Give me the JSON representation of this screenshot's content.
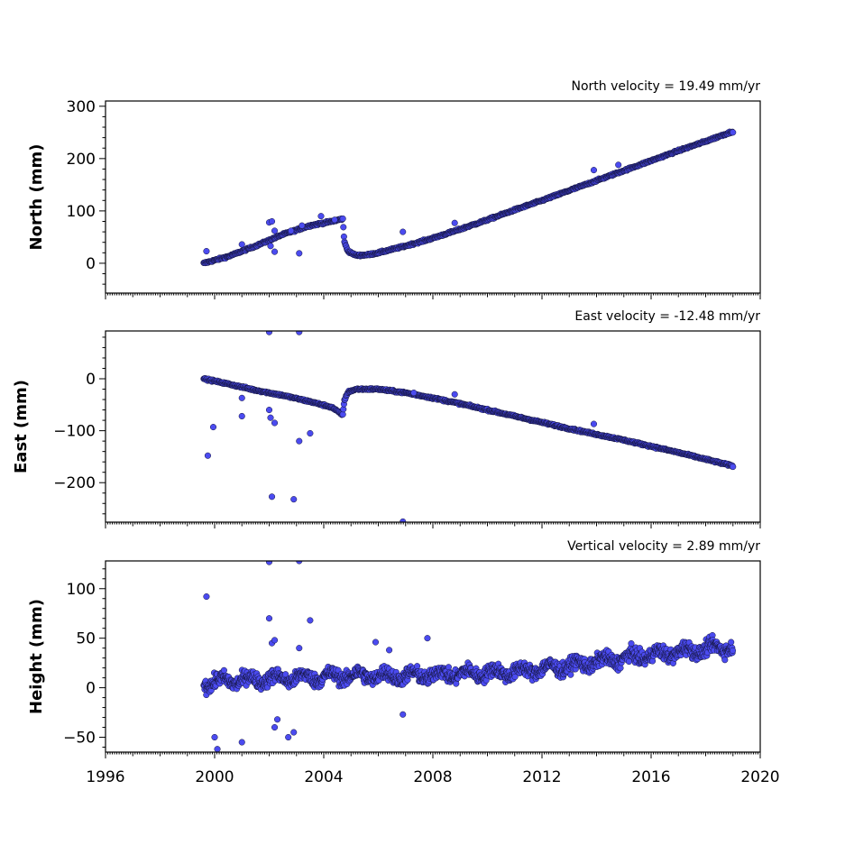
{
  "chart_data": [
    {
      "type": "scatter",
      "title": "North velocity = 19.49 mm/yr",
      "ylabel": "North (mm)",
      "xlabel": "",
      "xlim": [
        1996,
        2020
      ],
      "ylim": [
        -57,
        310
      ],
      "yticks": [
        0,
        100,
        200,
        300
      ],
      "xticks": [
        1996,
        2000,
        2004,
        2008,
        2012,
        2016,
        2020
      ],
      "show_x_tick_labels": false,
      "marker_color": "#4b4bf0",
      "series": [
        {
          "trend": [
            [
              1999.6,
              0
            ],
            [
              2000.5,
              13
            ],
            [
              2001.5,
              33
            ],
            [
              2002.5,
              55
            ],
            [
              2003.5,
              72
            ],
            [
              2004.3,
              80
            ],
            [
              2004.7,
              85
            ],
            [
              2004.75,
              42
            ],
            [
              2004.9,
              22
            ],
            [
              2005.2,
              15
            ],
            [
              2005.6,
              16
            ],
            [
              2006.0,
              20
            ],
            [
              2007.0,
              33
            ],
            [
              2008.0,
              48
            ],
            [
              2009.0,
              65
            ],
            [
              2010.0,
              83
            ],
            [
              2011.0,
              102
            ],
            [
              2012.0,
              120
            ],
            [
              2013.0,
              139
            ],
            [
              2014.0,
              158
            ],
            [
              2015.0,
              177
            ],
            [
              2016.0,
              196
            ],
            [
              2017.0,
              215
            ],
            [
              2018.0,
              233
            ],
            [
              2019.0,
              252
            ]
          ],
          "outliers": [
            [
              1999.7,
              23
            ],
            [
              2001.0,
              36
            ],
            [
              2002.0,
              78
            ],
            [
              2002.1,
              80
            ],
            [
              2002.2,
              62
            ],
            [
              2002.05,
              33
            ],
            [
              2002.2,
              22
            ],
            [
              2002.8,
              62
            ],
            [
              2003.1,
              19
            ],
            [
              2003.2,
              72
            ],
            [
              2003.9,
              90
            ],
            [
              2004.4,
              83
            ],
            [
              2006.9,
              60
            ],
            [
              2008.8,
              77
            ],
            [
              2013.9,
              178
            ],
            [
              2014.8,
              188
            ]
          ]
        }
      ]
    },
    {
      "type": "scatter",
      "title": "East velocity = -12.48 mm/yr",
      "ylabel": "East (mm)",
      "xlabel": "",
      "xlim": [
        1996,
        2020
      ],
      "ylim": [
        -276,
        92
      ],
      "yticks": [
        -200,
        -100,
        0
      ],
      "xticks": [
        1996,
        2000,
        2004,
        2008,
        2012,
        2016,
        2020
      ],
      "show_x_tick_labels": false,
      "marker_color": "#4b4bf0",
      "series": [
        {
          "trend": [
            [
              1999.6,
              0
            ],
            [
              2000.5,
              -10
            ],
            [
              2001.5,
              -22
            ],
            [
              2002.5,
              -32
            ],
            [
              2003.5,
              -44
            ],
            [
              2004.3,
              -55
            ],
            [
              2004.7,
              -70
            ],
            [
              2004.75,
              -42
            ],
            [
              2004.9,
              -25
            ],
            [
              2005.2,
              -20
            ],
            [
              2006.0,
              -20
            ],
            [
              2007.0,
              -27
            ],
            [
              2008.0,
              -37
            ],
            [
              2009.0,
              -48
            ],
            [
              2010.0,
              -60
            ],
            [
              2011.0,
              -72
            ],
            [
              2012.0,
              -84
            ],
            [
              2013.0,
              -96
            ],
            [
              2014.0,
              -107
            ],
            [
              2015.0,
              -118
            ],
            [
              2016.0,
              -130
            ],
            [
              2017.0,
              -142
            ],
            [
              2018.0,
              -155
            ],
            [
              2019.0,
              -168
            ]
          ],
          "outliers": [
            [
              1999.75,
              -148
            ],
            [
              1999.95,
              -93
            ],
            [
              2001.0,
              -72
            ],
            [
              2001.0,
              -37
            ],
            [
              2002.0,
              90
            ],
            [
              2002.0,
              -60
            ],
            [
              2002.05,
              -75
            ],
            [
              2002.2,
              -85
            ],
            [
              2002.1,
              -227
            ],
            [
              2002.9,
              -232
            ],
            [
              2003.1,
              90
            ],
            [
              2003.1,
              -120
            ],
            [
              2003.5,
              -105
            ],
            [
              2006.9,
              -275
            ],
            [
              2007.3,
              -27
            ],
            [
              2008.8,
              -30
            ],
            [
              2013.9,
              -87
            ]
          ]
        }
      ]
    },
    {
      "type": "scatter",
      "title": "Vertical velocity = 2.89 mm/yr",
      "ylabel": "Height (mm)",
      "xlabel": "",
      "xlim": [
        1996,
        2020
      ],
      "ylim": [
        -65,
        128
      ],
      "yticks": [
        -50,
        0,
        50,
        100
      ],
      "xticks": [
        1996,
        2000,
        2004,
        2008,
        2012,
        2016,
        2020
      ],
      "show_x_tick_labels": true,
      "marker_color": "#4b4bf0",
      "series": [
        {
          "trend": [
            [
              1999.6,
              5
            ],
            [
              2001.0,
              8
            ],
            [
              2003.0,
              10
            ],
            [
              2005.0,
              12
            ],
            [
              2007.0,
              12
            ],
            [
              2009.0,
              14
            ],
            [
              2011.0,
              16
            ],
            [
              2013.0,
              22
            ],
            [
              2015.0,
              30
            ],
            [
              2017.0,
              36
            ],
            [
              2019.0,
              42
            ]
          ],
          "noise": 9,
          "outliers": [
            [
              1999.7,
              92
            ],
            [
              2000.0,
              -50
            ],
            [
              2000.1,
              -62
            ],
            [
              2001.0,
              -55
            ],
            [
              2002.0,
              127
            ],
            [
              2002.0,
              70
            ],
            [
              2002.1,
              45
            ],
            [
              2002.2,
              48
            ],
            [
              2002.2,
              -40
            ],
            [
              2002.3,
              -32
            ],
            [
              2002.7,
              -50
            ],
            [
              2002.9,
              -45
            ],
            [
              2003.1,
              128
            ],
            [
              2003.1,
              40
            ],
            [
              2003.5,
              68
            ],
            [
              2005.9,
              46
            ],
            [
              2006.4,
              38
            ],
            [
              2006.9,
              -27
            ],
            [
              2007.8,
              50
            ]
          ]
        }
      ]
    }
  ]
}
